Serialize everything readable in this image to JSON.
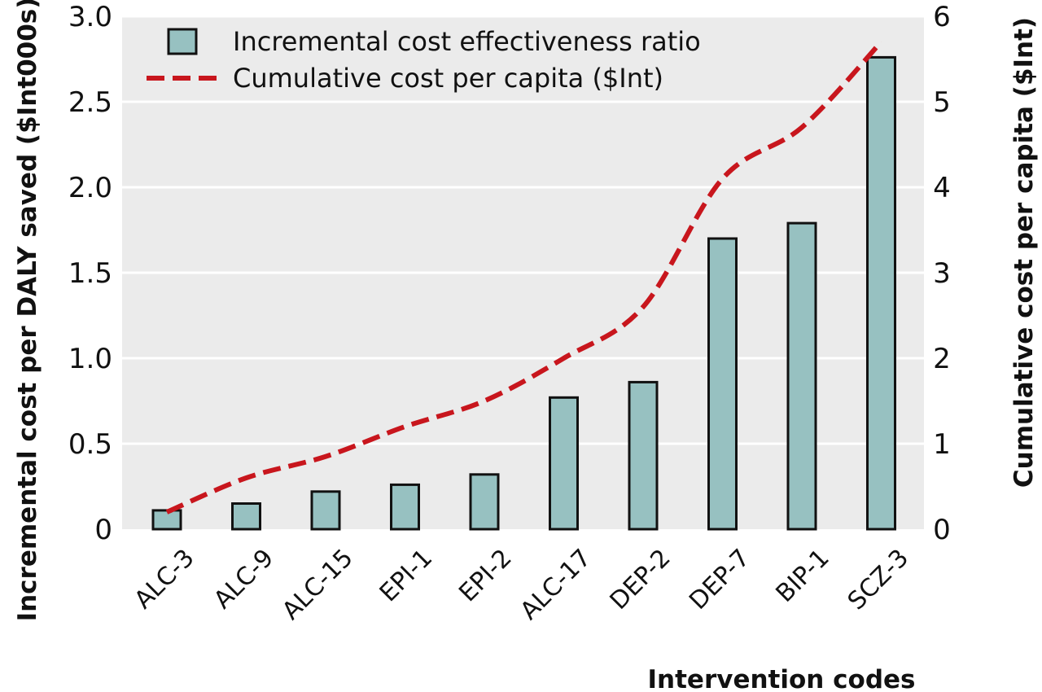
{
  "chart_data": {
    "type": "bar",
    "categories": [
      "ALC-3",
      "ALC-9",
      "ALC-15",
      "EPI-1",
      "EPI-2",
      "ALC-17",
      "DEP-2",
      "DEP-7",
      "BIP-1",
      "SCZ-3"
    ],
    "series": [
      {
        "name": "Incremental cost effectiveness ratio",
        "type": "bar",
        "axis": "left",
        "values": [
          0.11,
          0.15,
          0.22,
          0.26,
          0.32,
          0.77,
          0.86,
          1.7,
          1.79,
          2.76
        ]
      },
      {
        "name": "Cumulative cost per capita ($Int)",
        "type": "line",
        "axis": "right",
        "values": [
          0.2,
          0.6,
          0.85,
          1.2,
          1.5,
          2.0,
          2.6,
          4.1,
          4.7,
          5.7
        ]
      }
    ],
    "xlabel": "Intervention codes",
    "ylabel_left": "Incremental cost per DALY saved ($Int000s)",
    "ylabel_right": "Cumulative cost per capita ($Int)",
    "ylim_left": [
      0,
      3.0
    ],
    "ylim_right": [
      0,
      6
    ],
    "yticks_left": [
      "0",
      "0.5",
      "1.0",
      "1.5",
      "2.0",
      "2.5",
      "3.0"
    ],
    "yticks_right": [
      "0",
      "1",
      "2",
      "3",
      "4",
      "5",
      "6"
    ],
    "grid": true,
    "legend_position": "top-left",
    "colors": {
      "plot_background": "#ebebeb",
      "grid": "#ffffff",
      "bar_fill": "#97c1c1",
      "bar_stroke": "#111111",
      "line": "#c8161d"
    }
  }
}
